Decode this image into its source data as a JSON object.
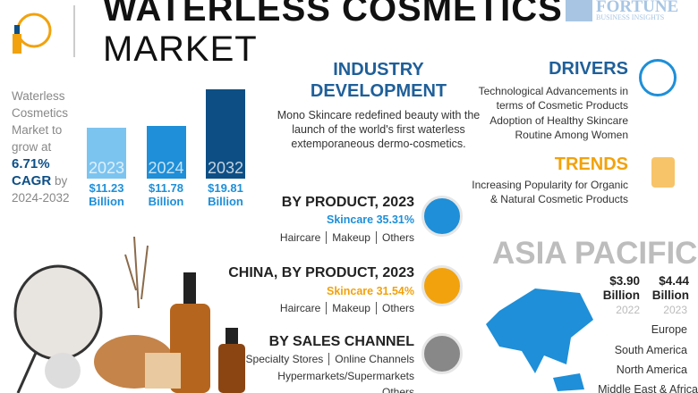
{
  "header": {
    "title": "WATERLESS COSMETICS",
    "subtitle": "MARKET",
    "brand": "FORTUNE",
    "brand_sub": "BUSINESS INSIGHTS"
  },
  "growth": {
    "lead": "Waterless Cosmetics Market to grow at",
    "cagr_value": "6.71%",
    "cagr": "CAGR",
    "by": "by",
    "period": "2024-2032"
  },
  "chart_data": {
    "type": "bar",
    "categories": [
      "2023",
      "2024",
      "2032"
    ],
    "values": [
      11.23,
      11.78,
      19.81
    ],
    "value_labels": [
      "$11.23 Billion",
      "$11.78 Billion",
      "$19.81 Billion"
    ],
    "colors": [
      "#7cc4f0",
      "#1e8fd8",
      "#0d4f85"
    ]
  },
  "industry": {
    "title": "INDUSTRY DEVELOPMENT",
    "text": "Mono Skincare redefined beauty with the launch of the world's first waterless extemporaneous dermo-cosmetics."
  },
  "drivers": {
    "title": "DRIVERS",
    "items": [
      "Technological Advancements in terms of Cosmetic Products",
      "Adoption of Healthy Skincare Routine Among Women"
    ]
  },
  "trends": {
    "title": "TRENDS",
    "text": "Increasing Popularity for Organic & Natural Cosmetic Products"
  },
  "by_product": {
    "title": "BY PRODUCT, 2023",
    "highlight": "Skincare 35.31%",
    "others": [
      "Haircare",
      "Makeup",
      "Others"
    ]
  },
  "china": {
    "title": "CHINA, BY PRODUCT, 2023",
    "highlight": "Skincare 31.54%",
    "others": [
      "Haircare",
      "Makeup",
      "Others"
    ]
  },
  "sales_channel": {
    "title": "BY SALES CHANNEL",
    "items": [
      "Specialty Stores",
      "Online Channels",
      "Hypermarkets/Supermarkets",
      "Others"
    ]
  },
  "region": {
    "title": "ASIA PACIFIC",
    "values": [
      {
        "value": "$3.90 Billion",
        "year": "2022"
      },
      {
        "value": "$4.44 Billion",
        "year": "2023"
      }
    ],
    "others": [
      "Europe",
      "South America",
      "North America",
      "Middle East & Africa"
    ]
  }
}
